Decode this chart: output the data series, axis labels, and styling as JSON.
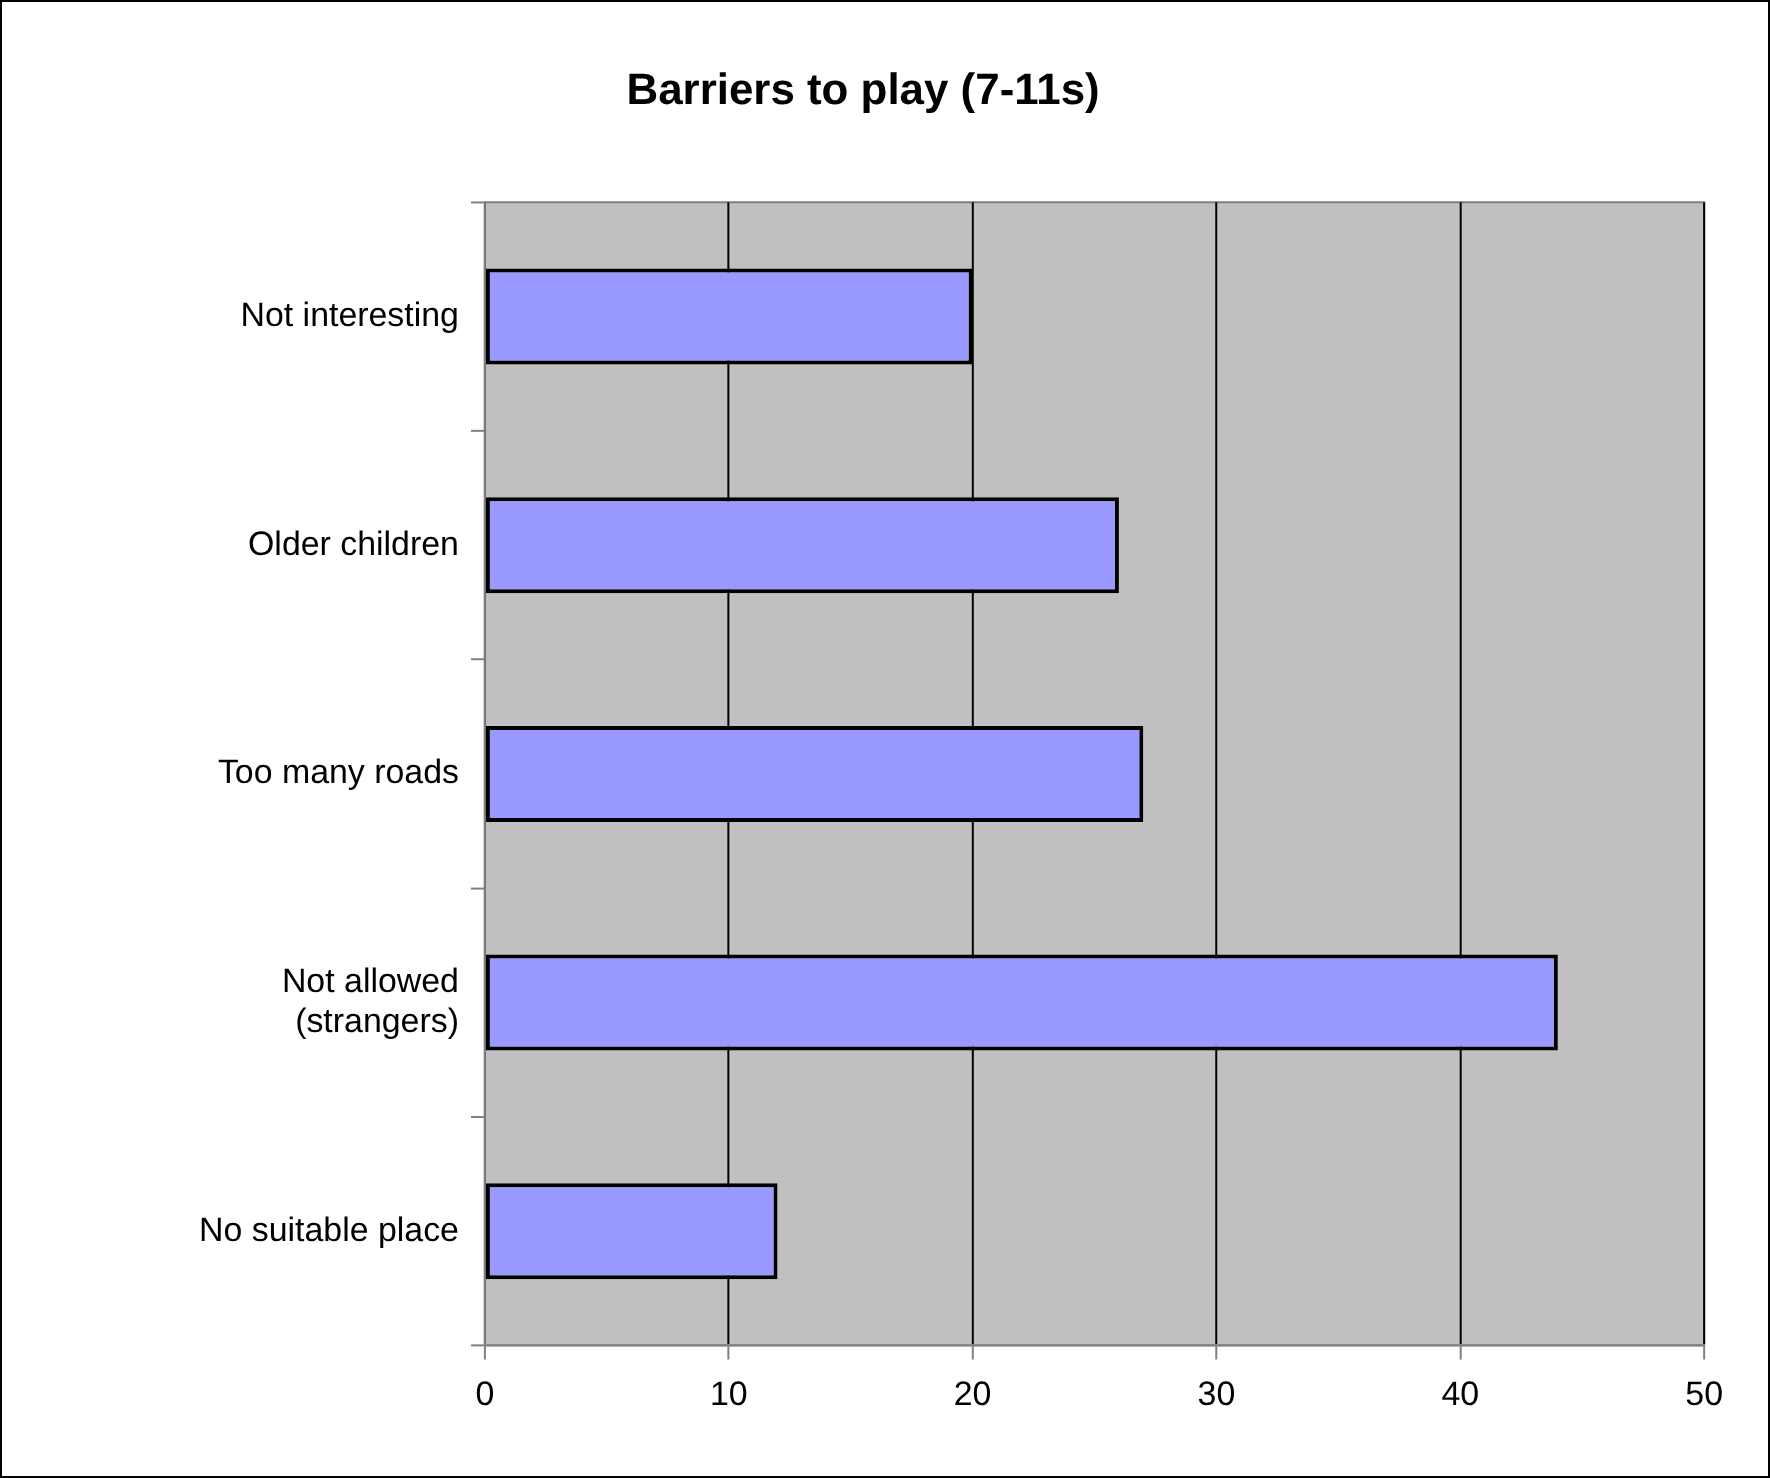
{
  "chart_data": {
    "type": "bar",
    "orientation": "horizontal",
    "title": "Barriers to play (7-11s)",
    "categories": [
      "Not interesting",
      "Older children",
      "Too many roads",
      "Not allowed (strangers)",
      "No suitable place"
    ],
    "values": [
      20,
      26,
      27,
      44,
      12
    ],
    "color": "#9999ff",
    "xlim": [
      0,
      50
    ],
    "xticks": [
      0,
      10,
      20,
      30,
      40,
      50
    ],
    "grid": "x",
    "legend": false
  }
}
